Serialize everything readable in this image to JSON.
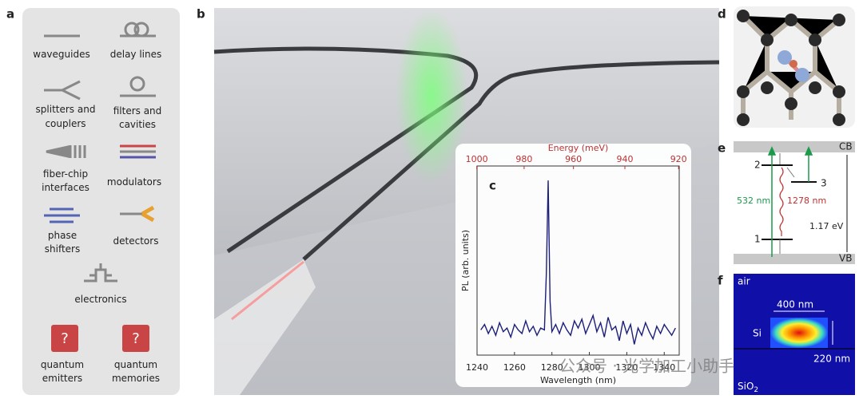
{
  "panel_labels": [
    "a",
    "b",
    "c",
    "d",
    "e",
    "f"
  ],
  "components": [
    {
      "lines": [
        "waveguides"
      ]
    },
    {
      "lines": [
        "delay lines"
      ]
    },
    {
      "lines": [
        "splitters and",
        "couplers"
      ]
    },
    {
      "lines": [
        "filters and",
        "cavities"
      ]
    },
    {
      "lines": [
        "fiber-chip",
        "interfaces"
      ]
    },
    {
      "lines": [
        "modulators"
      ]
    },
    {
      "lines": [
        "phase",
        "shifters"
      ]
    },
    {
      "lines": [
        "detectors"
      ]
    },
    {
      "lines": [
        "electronics"
      ]
    },
    {
      "lines": [
        "quantum",
        "emitters"
      ],
      "icon": "?"
    },
    {
      "lines": [
        "quantum",
        "memories"
      ],
      "icon": "?"
    }
  ],
  "chart_data": {
    "type": "line",
    "x_label": "Wavelength (nm)",
    "x2_label": "Energy (meV)",
    "y_label": "PL  (arb. units)",
    "color": "#1c1f7a",
    "x": [
      1242,
      1244,
      1246,
      1248,
      1250,
      1252,
      1254,
      1256,
      1258,
      1260,
      1262,
      1264,
      1266,
      1268,
      1270,
      1272,
      1274,
      1276,
      1277,
      1278,
      1279,
      1280,
      1282,
      1284,
      1286,
      1288,
      1290,
      1292,
      1294,
      1296,
      1298,
      1300,
      1302,
      1304,
      1306,
      1308,
      1310,
      1312,
      1314,
      1316,
      1318,
      1320,
      1322,
      1324,
      1326,
      1328,
      1330,
      1332,
      1334,
      1336,
      1338,
      1340,
      1342,
      1344,
      1346
    ],
    "values": [
      0.14,
      0.17,
      0.12,
      0.16,
      0.11,
      0.18,
      0.13,
      0.15,
      0.1,
      0.17,
      0.14,
      0.12,
      0.19,
      0.13,
      0.16,
      0.11,
      0.15,
      0.14,
      0.45,
      0.97,
      0.3,
      0.13,
      0.17,
      0.12,
      0.18,
      0.14,
      0.11,
      0.19,
      0.15,
      0.2,
      0.12,
      0.17,
      0.22,
      0.13,
      0.18,
      0.1,
      0.21,
      0.14,
      0.16,
      0.08,
      0.19,
      0.12,
      0.17,
      0.06,
      0.15,
      0.11,
      0.18,
      0.13,
      0.09,
      0.16,
      0.12,
      0.17,
      0.14,
      0.11,
      0.15
    ],
    "xlim": [
      1240,
      1348
    ],
    "xticks": [
      1240,
      1260,
      1280,
      1300,
      1320,
      1340
    ],
    "x2ticks": [
      1000,
      980,
      960,
      940,
      920
    ],
    "ylim": [
      0,
      1.05
    ]
  },
  "energy_diagram": {
    "cb": "CB",
    "vb": "VB",
    "level_2": "2",
    "level_3": "3",
    "level_1": "1",
    "excitation": "532 nm",
    "emission": "1278 nm",
    "gap": "1.17 eV"
  },
  "mode_profile": {
    "top": "air",
    "width": "400 nm",
    "core": "Si",
    "height": "220 nm",
    "substrate": "SiO",
    "substrate_sub": "2"
  },
  "watermark": "公众号 · 光学加工小助手"
}
